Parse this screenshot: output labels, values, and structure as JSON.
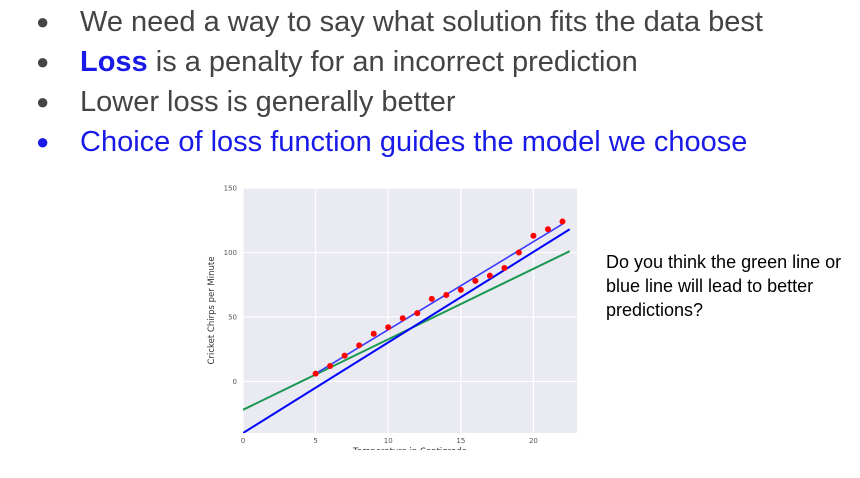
{
  "bullets": [
    {
      "text": "We need a way to say what solution fits the data best"
    },
    {
      "strong": "Loss",
      "text": " is a penalty for an incorrect prediction"
    },
    {
      "text": "Lower loss is generally better"
    },
    {
      "text": "Choice of loss function guides the model we choose",
      "highlight": true
    }
  ],
  "question": "Do you think the green line or blue line will lead to better predictions?",
  "colors": {
    "bullet_text": "#444444",
    "highlight": "#1a1ae8",
    "plot_bg": "#eaeaf2",
    "points": "#ff0000",
    "green_line": "#1a9850",
    "blue_line": "#0000ff"
  },
  "chart_data": {
    "type": "scatter",
    "xlabel": "Temperature in Centigrade",
    "ylabel": "Cricket Chirps per Minute",
    "xlim": [
      0,
      23
    ],
    "ylim": [
      -40,
      150
    ],
    "grid": true,
    "x_ticks": [
      0,
      5,
      10,
      15,
      20
    ],
    "y_ticks": [
      0,
      50,
      100,
      150
    ],
    "points": {
      "x": [
        5,
        6,
        7,
        8,
        9,
        10,
        11,
        12,
        13,
        14,
        15,
        16,
        17,
        18,
        19,
        20,
        21,
        22
      ],
      "y": [
        6,
        12,
        20,
        28,
        37,
        42,
        49,
        53,
        64,
        67,
        71,
        78,
        82,
        88,
        100,
        113,
        118,
        124
      ]
    },
    "lines": [
      {
        "color": "green",
        "x": [
          0,
          22.5
        ],
        "y": [
          -22,
          101
        ]
      },
      {
        "color": "blue",
        "x": [
          0,
          22.5
        ],
        "y": [
          -40,
          118
        ]
      },
      {
        "color": "blue-fit",
        "x": [
          5,
          22
        ],
        "y": [
          6,
          122
        ]
      }
    ]
  }
}
